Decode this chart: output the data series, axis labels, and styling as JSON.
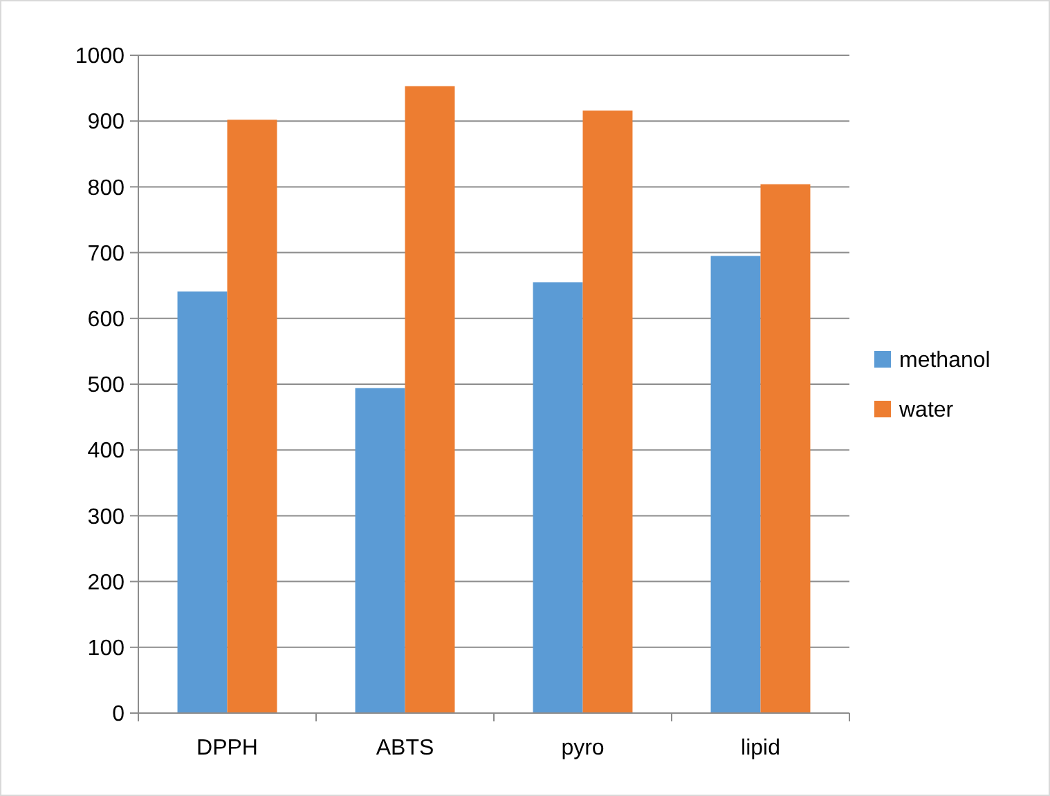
{
  "chart_data": {
    "type": "bar",
    "categories": [
      "DPPH",
      "ABTS",
      "pyro",
      "lipid"
    ],
    "series": [
      {
        "name": "methanol",
        "color": "#5b9bd5",
        "values": [
          641,
          494,
          655,
          695
        ]
      },
      {
        "name": "water",
        "color": "#ed7d31",
        "values": [
          902,
          953,
          916,
          804
        ]
      }
    ],
    "ylim": [
      0,
      1000
    ],
    "yticks": [
      0,
      100,
      200,
      300,
      400,
      500,
      600,
      700,
      800,
      900,
      1000
    ],
    "grid": "y",
    "legend": "right"
  }
}
